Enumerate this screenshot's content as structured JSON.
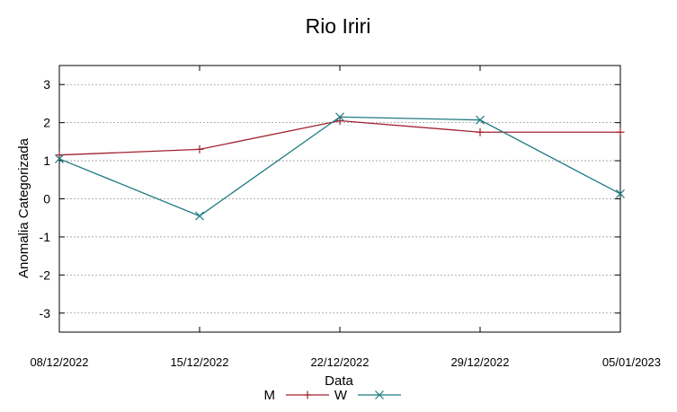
{
  "chart_data": {
    "type": "line",
    "title": "Rio Iriri",
    "xlabel": "Data",
    "ylabel": "Anomalia Categorizada",
    "categories": [
      "08/12/2022",
      "15/12/2022",
      "22/12/2022",
      "29/12/2022",
      "05/01/2023"
    ],
    "ylim": [
      -3.5,
      3.5
    ],
    "yticks": [
      "3",
      "2",
      "1",
      "0",
      "-1",
      "-2",
      "-3"
    ],
    "grid": true,
    "legend_position": "bottom",
    "series": [
      {
        "name": "M",
        "color": "#a0212e",
        "marker": "plus",
        "values": [
          1.15,
          1.3,
          2.05,
          1.75,
          1.75
        ]
      },
      {
        "name": "W",
        "color": "#1f7a80",
        "marker": "cross",
        "values": [
          1.05,
          -0.45,
          2.15,
          2.07,
          0.13
        ]
      }
    ]
  }
}
